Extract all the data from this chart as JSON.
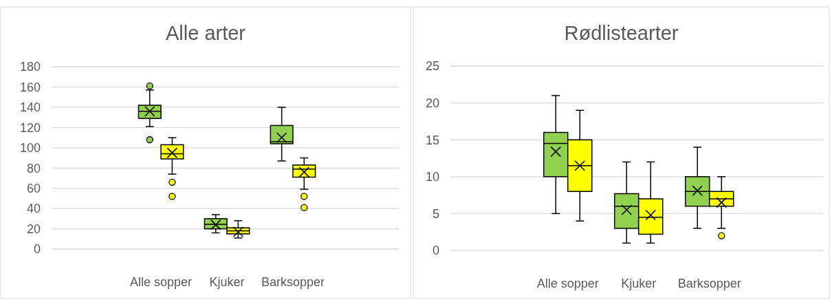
{
  "chart_data": [
    {
      "type": "box",
      "title": "Alle arter",
      "categories": [
        "Alle sopper",
        "Kjuker",
        "Barksopper"
      ],
      "ylim": [
        0,
        180
      ],
      "yticks": [
        0,
        20,
        40,
        60,
        80,
        100,
        120,
        140,
        160,
        180
      ],
      "grid": "y",
      "series": [
        {
          "color": "#92d050",
          "boxes": [
            {
              "low": 121,
              "q1": 129,
              "median": 136,
              "q3": 142,
              "high": 157,
              "mean": 136,
              "outliers": [
                108,
                161
              ]
            },
            {
              "low": 16,
              "q1": 20,
              "median": 24.5,
              "q3": 30,
              "high": 34,
              "mean": 24
            },
            {
              "low": 87,
              "q1": 104,
              "median": 106,
              "q3": 122,
              "high": 140,
              "mean": 110
            }
          ]
        },
        {
          "color": "#ffff00",
          "boxes": [
            {
              "low": 74,
              "q1": 89,
              "median": 94,
              "q3": 103,
              "high": 110,
              "mean": 95,
              "outliers": [
                52,
                66
              ]
            },
            {
              "low": 11,
              "q1": 15,
              "median": 18,
              "q3": 21,
              "high": 28,
              "mean": 17
            },
            {
              "low": 59,
              "q1": 71,
              "median": 79,
              "q3": 83,
              "high": 90,
              "mean": 76,
              "outliers": [
                41,
                52
              ]
            }
          ]
        }
      ]
    },
    {
      "type": "box",
      "title": "Rødlistearter",
      "categories": [
        "Alle sopper",
        "Kjuker",
        "Barksopper"
      ],
      "ylim": [
        0,
        25
      ],
      "yticks": [
        0,
        5,
        10,
        15,
        20,
        25
      ],
      "grid": "y",
      "series": [
        {
          "color": "#92d050",
          "boxes": [
            {
              "low": 5,
              "q1": 10,
              "median": 14.5,
              "q3": 16,
              "high": 21,
              "mean": 13.4
            },
            {
              "low": 1,
              "q1": 3,
              "median": 6,
              "q3": 7.7,
              "high": 12,
              "mean": 5.5
            },
            {
              "low": 3,
              "q1": 6,
              "median": 8,
              "q3": 10,
              "high": 14,
              "mean": 8.1
            }
          ]
        },
        {
          "color": "#ffff00",
          "boxes": [
            {
              "low": 4,
              "q1": 8,
              "median": 11.5,
              "q3": 15,
              "high": 19,
              "mean": 11.5
            },
            {
              "low": 1,
              "q1": 2.2,
              "median": 4.5,
              "q3": 7,
              "high": 12,
              "mean": 4.8
            },
            {
              "low": 3,
              "q1": 6,
              "median": 7,
              "q3": 8,
              "high": 10,
              "mean": 6.5,
              "outliers": [
                2
              ]
            }
          ]
        }
      ]
    }
  ]
}
